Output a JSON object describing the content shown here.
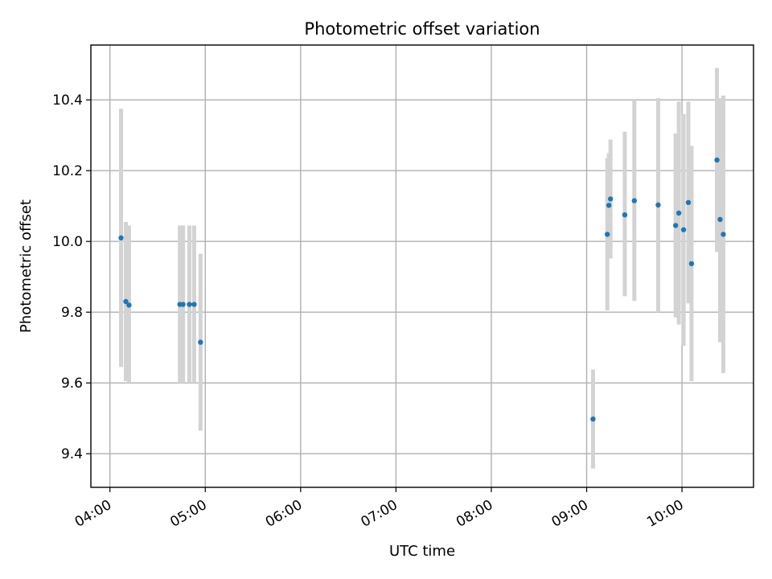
{
  "chart_data": {
    "type": "scatter",
    "title": "Photometric offset variation",
    "xlabel": "UTC time",
    "ylabel": "Photometric offset",
    "x_ticks": [
      "04:00",
      "05:00",
      "06:00",
      "07:00",
      "08:00",
      "09:00",
      "10:00"
    ],
    "y_ticks": [
      "9.4",
      "9.6",
      "9.8",
      "10.0",
      "10.2",
      "10.4"
    ],
    "xlim": [
      "03:48",
      "10:45"
    ],
    "ylim": [
      9.305,
      10.555
    ],
    "grid": true,
    "colors": {
      "point": "#1f77b4",
      "errorbar": "#d3d3d3"
    },
    "points": [
      {
        "time": "04:07",
        "y": 10.01,
        "ylow": 9.645,
        "yhigh": 10.375
      },
      {
        "time": "04:10",
        "y": 9.83,
        "ylow": 9.605,
        "yhigh": 10.055
      },
      {
        "time": "04:12",
        "y": 9.82,
        "ylow": 9.6,
        "yhigh": 10.045
      },
      {
        "time": "04:44",
        "y": 9.822,
        "ylow": 9.6,
        "yhigh": 10.045
      },
      {
        "time": "04:46",
        "y": 9.822,
        "ylow": 9.6,
        "yhigh": 10.045
      },
      {
        "time": "04:50",
        "y": 9.822,
        "ylow": 9.6,
        "yhigh": 10.045
      },
      {
        "time": "04:53",
        "y": 9.822,
        "ylow": 9.6,
        "yhigh": 10.045
      },
      {
        "time": "04:57",
        "y": 9.715,
        "ylow": 9.465,
        "yhigh": 9.965
      },
      {
        "time": "09:04",
        "y": 9.498,
        "ylow": 9.358,
        "yhigh": 9.638
      },
      {
        "time": "09:13",
        "y": 10.02,
        "ylow": 9.805,
        "yhigh": 10.235
      },
      {
        "time": "09:14",
        "y": 10.102,
        "ylow": 9.955,
        "yhigh": 10.25
      },
      {
        "time": "09:15",
        "y": 10.12,
        "ylow": 9.952,
        "yhigh": 10.288
      },
      {
        "time": "09:24",
        "y": 10.075,
        "ylow": 9.845,
        "yhigh": 10.31
      },
      {
        "time": "09:30",
        "y": 10.115,
        "ylow": 9.832,
        "yhigh": 10.4
      },
      {
        "time": "09:45",
        "y": 10.103,
        "ylow": 9.8,
        "yhigh": 10.405
      },
      {
        "time": "09:56",
        "y": 10.045,
        "ylow": 9.785,
        "yhigh": 10.305
      },
      {
        "time": "09:58",
        "y": 10.08,
        "ylow": 9.765,
        "yhigh": 10.395
      },
      {
        "time": "10:01",
        "y": 10.033,
        "ylow": 9.705,
        "yhigh": 10.36
      },
      {
        "time": "10:04",
        "y": 10.11,
        "ylow": 9.825,
        "yhigh": 10.395
      },
      {
        "time": "10:06",
        "y": 9.937,
        "ylow": 9.605,
        "yhigh": 10.27
      },
      {
        "time": "10:22",
        "y": 10.23,
        "ylow": 9.97,
        "yhigh": 10.49
      },
      {
        "time": "10:24",
        "y": 10.062,
        "ylow": 9.715,
        "yhigh": 10.405
      },
      {
        "time": "10:26",
        "y": 10.02,
        "ylow": 9.628,
        "yhigh": 10.412
      }
    ]
  }
}
